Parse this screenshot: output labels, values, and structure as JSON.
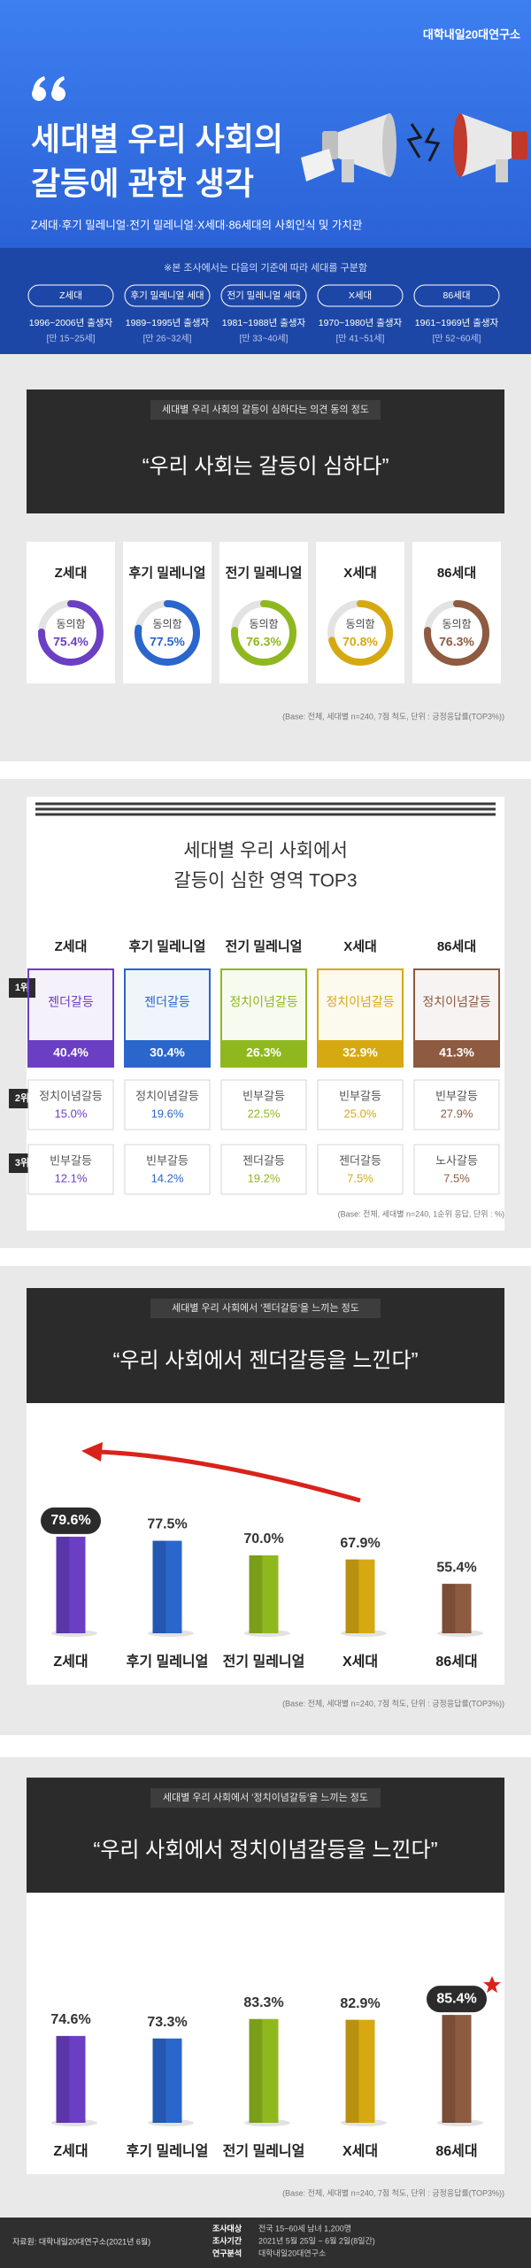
{
  "header": {
    "logo": "대학내일20대연구소",
    "title_lines": [
      "세대별 우리 사회의",
      "갈등에 관한 생각"
    ],
    "subtitle": "Z세대·후기 밀레니얼·전기 밀레니얼·X세대·86세대의 사회인식 및 가치관"
  },
  "generations": {
    "note": "※본 조사에서는 다음의 기준에 따라 세대를 구분함",
    "items": [
      {
        "name": "Z세대",
        "birth": "1996~2006년 출생자",
        "age": "[만 15~25세]"
      },
      {
        "name": "후기 밀레니얼 세대",
        "birth": "1989~1995년 출생자",
        "age": "[만 26~32세]"
      },
      {
        "name": "전기 밀레니얼 세대",
        "birth": "1981~1988년 출생자",
        "age": "[만 33~40세]"
      },
      {
        "name": "X세대",
        "birth": "1970~1980년 출생자",
        "age": "[만 41~51세]"
      },
      {
        "name": "86세대",
        "birth": "1961~1969년 출생자",
        "age": "[만 52~60세]"
      }
    ]
  },
  "chart_data": [
    {
      "type": "donut",
      "banner": "세대별 우리 사회의 갈등이 심하다는 의견 동의 정도",
      "title": "“우리 사회는 갈등이 심하다”",
      "center_label": "동의함",
      "categories": [
        "Z세대",
        "후기 밀레니얼",
        "전기 밀레니얼",
        "X세대",
        "86세대"
      ],
      "values": [
        75.4,
        77.5,
        76.3,
        70.8,
        76.3
      ],
      "value_labels": [
        "75.4%",
        "77.5%",
        "76.3%",
        "70.8%",
        "76.3%"
      ],
      "colors": [
        "#6b3fc4",
        "#2a66cc",
        "#8fb81f",
        "#d6a912",
        "#8e5a40"
      ],
      "ylim": [
        0,
        100
      ],
      "note": "(Base: 전체, 세대별 n=240, 7점 척도, 단위 : 긍정응답률(TOP3%))"
    },
    {
      "type": "bar",
      "banner": "세대별 우리 사회에서 '젠더갈등'을 느끼는 정도",
      "title": "“우리 사회에서 젠더갈등을 느낀다”",
      "categories": [
        "Z세대",
        "후기 밀레니얼",
        "전기 밀레니얼",
        "X세대",
        "86세대"
      ],
      "values": [
        79.6,
        77.5,
        70.0,
        67.9,
        55.4
      ],
      "value_labels": [
        "79.6%",
        "77.5%",
        "70.0%",
        "67.9%",
        "55.4%"
      ],
      "colors": [
        "#6b3fc4",
        "#2a66cc",
        "#8fb81f",
        "#d6a912",
        "#8e5a40"
      ],
      "ylim": [
        30,
        90
      ],
      "highlight": 0,
      "note": "(Base: 전체, 세대별 n=240, 7점 척도, 단위 : 긍정응답률(TOP3%))"
    },
    {
      "type": "bar",
      "banner": "세대별 우리 사회에서 '정치이념갈등'을 느끼는 정도",
      "title": "“우리 사회에서 정치이념갈등을 느낀다”",
      "categories": [
        "Z세대",
        "후기 밀레니얼",
        "전기 밀레니얼",
        "X세대",
        "86세대"
      ],
      "values": [
        74.6,
        73.3,
        83.3,
        82.9,
        85.4
      ],
      "value_labels": [
        "74.6%",
        "73.3%",
        "83.3%",
        "82.9%",
        "85.4%"
      ],
      "colors": [
        "#6b3fc4",
        "#2a66cc",
        "#8fb81f",
        "#d6a912",
        "#8e5a40"
      ],
      "ylim": [
        30,
        90
      ],
      "highlight": 4,
      "note": "(Base: 전체, 세대별 n=240, 7점 척도, 단위 : 긍정응답률(TOP3%))"
    }
  ],
  "top3": {
    "title_lines": [
      "세대별 우리 사회에서",
      "갈등이 심한 영역 TOP3"
    ],
    "columns": [
      "Z세대",
      "후기 밀레니얼",
      "전기 밀레니얼",
      "X세대",
      "86세대"
    ],
    "colors": [
      "#6b3fc4",
      "#2a66cc",
      "#8fb81f",
      "#d6a912",
      "#8e5a40"
    ],
    "ranks": [
      "1위",
      "2위",
      "3위"
    ],
    "rows": [
      [
        {
          "name": "젠더갈등",
          "value": "40.4%"
        },
        {
          "name": "젠더갈등",
          "value": "30.4%"
        },
        {
          "name": "정치이념갈등",
          "value": "26.3%"
        },
        {
          "name": "정치이념갈등",
          "value": "32.9%"
        },
        {
          "name": "정치이념갈등",
          "value": "41.3%"
        }
      ],
      [
        {
          "name": "정치이념갈등",
          "value": "15.0%"
        },
        {
          "name": "정치이념갈등",
          "value": "19.6%"
        },
        {
          "name": "빈부갈등",
          "value": "22.5%"
        },
        {
          "name": "빈부갈등",
          "value": "25.0%"
        },
        {
          "name": "빈부갈등",
          "value": "27.9%"
        }
      ],
      [
        {
          "name": "빈부갈등",
          "value": "12.1%"
        },
        {
          "name": "빈부갈등",
          "value": "14.2%"
        },
        {
          "name": "젠더갈등",
          "value": "19.2%"
        },
        {
          "name": "젠더갈등",
          "value": "7.5%"
        },
        {
          "name": "노사갈등",
          "value": "7.5%"
        }
      ]
    ],
    "note": "(Base: 전체, 세대별 n=240, 1순위 응답, 단위 : %)"
  },
  "footer": {
    "source": "자료원: 대학내일20대연구소(2021년 6월)",
    "items": [
      {
        "label": "조사대상",
        "text": "전국 15~60세 남녀 1,200명"
      },
      {
        "label": "조사기간",
        "text": "2021년 5월 25일 ~ 6월 2일(8일간)"
      },
      {
        "label": "연구분석",
        "text": "대학내일20대연구소"
      }
    ]
  }
}
